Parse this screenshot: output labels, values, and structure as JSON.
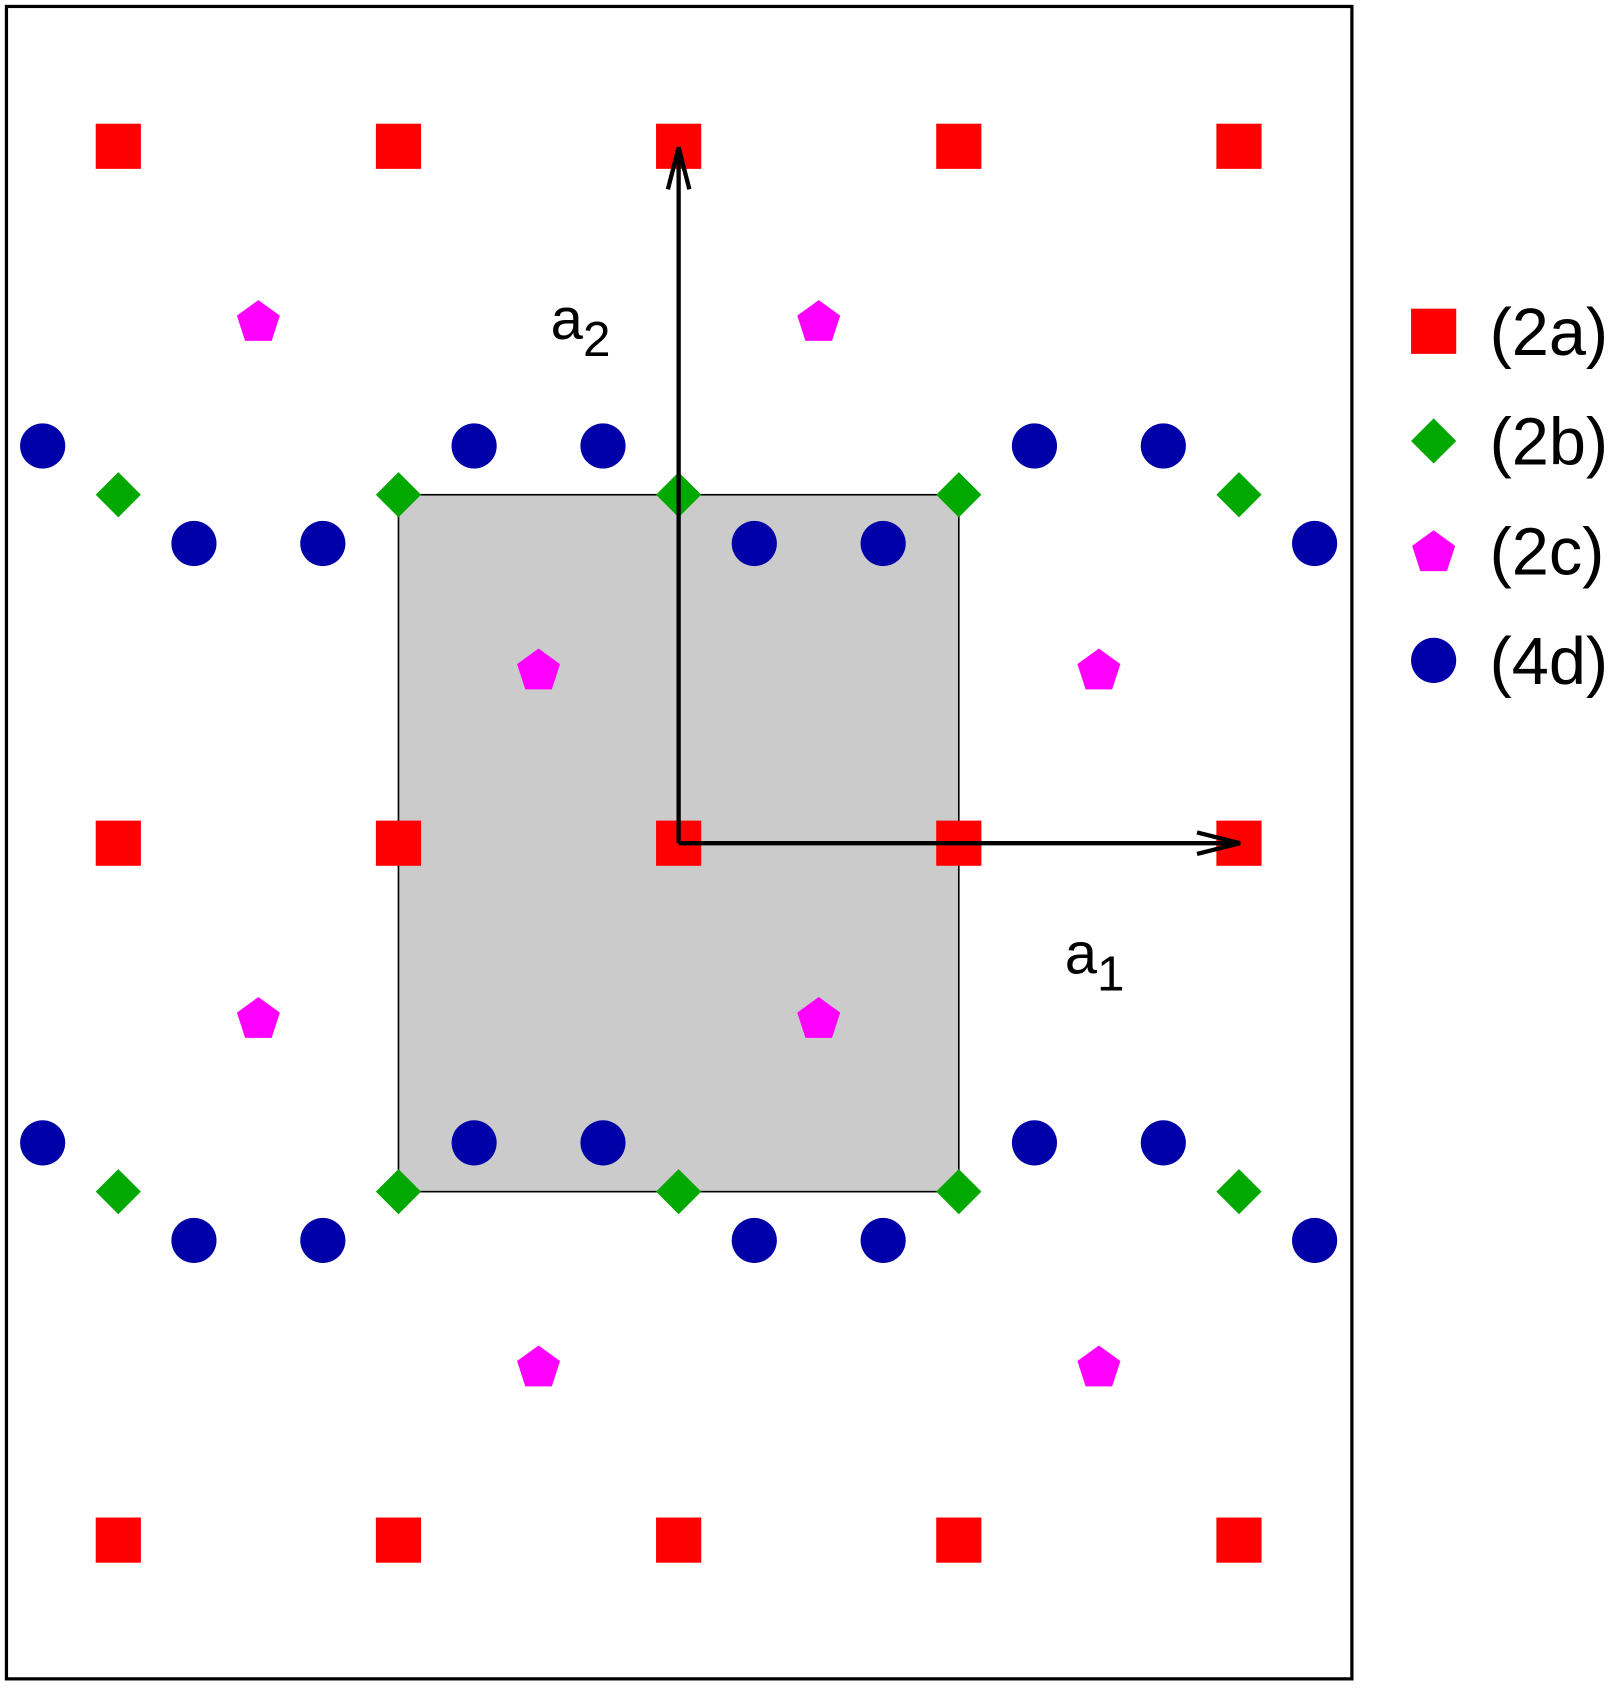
{
  "colors": {
    "2a": "#ff0000",
    "2b": "#00a800",
    "2c": "#ff00ff",
    "4d": "#0000a8",
    "cell": "#cbcbcb"
  },
  "vectors": {
    "a1": {
      "base": "a",
      "sub": "1"
    },
    "a2": {
      "base": "a",
      "sub": "2"
    }
  },
  "legend": [
    {
      "key": "2a",
      "label": "(2a)",
      "shape": "square"
    },
    {
      "key": "2b",
      "label": "(2b)",
      "shape": "diamond"
    },
    {
      "key": "2c",
      "label": "(2c)",
      "shape": "pentagon"
    },
    {
      "key": "4d",
      "label": "(4d)",
      "shape": "circle"
    }
  ],
  "unit_cell": {
    "x": [
      -0.5,
      0.5
    ],
    "y": [
      -0.5,
      0.5
    ]
  },
  "sites": {
    "2a": [
      [
        -1,
        1
      ],
      [
        -0.5,
        1
      ],
      [
        0,
        1
      ],
      [
        0.5,
        1
      ],
      [
        1,
        1
      ],
      [
        -1,
        0
      ],
      [
        -0.5,
        0
      ],
      [
        0,
        0
      ],
      [
        0.5,
        0
      ],
      [
        1,
        0
      ],
      [
        -1,
        -1
      ],
      [
        -0.5,
        -1
      ],
      [
        0,
        -1
      ],
      [
        0.5,
        -1
      ],
      [
        1,
        -1
      ]
    ],
    "2b": [
      [
        -1,
        0.5
      ],
      [
        -0.5,
        0.5
      ],
      [
        0,
        0.5
      ],
      [
        0.5,
        0.5
      ],
      [
        1,
        0.5
      ],
      [
        -1,
        -0.5
      ],
      [
        -0.5,
        -0.5
      ],
      [
        0,
        -0.5
      ],
      [
        0.5,
        -0.5
      ],
      [
        1,
        -0.5
      ]
    ],
    "2c": [
      [
        -0.75,
        0.75
      ],
      [
        0.25,
        0.75
      ],
      [
        -0.25,
        0.25
      ],
      [
        0.75,
        0.25
      ],
      [
        -0.75,
        -0.25
      ],
      [
        0.25,
        -0.25
      ],
      [
        -0.25,
        -0.75
      ],
      [
        0.75,
        -0.75
      ]
    ],
    "4d": [
      [
        -1.135,
        0.57
      ],
      [
        -0.365,
        0.57
      ],
      [
        -0.135,
        0.57
      ],
      [
        0.635,
        0.57
      ],
      [
        0.865,
        0.57
      ],
      [
        -0.865,
        0.43
      ],
      [
        -0.635,
        0.43
      ],
      [
        0.135,
        0.43
      ],
      [
        0.365,
        0.43
      ],
      [
        1.135,
        0.43
      ],
      [
        -1.135,
        -0.43
      ],
      [
        -0.365,
        -0.43
      ],
      [
        -0.135,
        -0.43
      ],
      [
        0.635,
        -0.43
      ],
      [
        0.865,
        -0.43
      ],
      [
        -0.865,
        -0.57
      ],
      [
        -0.635,
        -0.57
      ],
      [
        0.135,
        -0.57
      ],
      [
        0.365,
        -0.57
      ],
      [
        1.135,
        -0.57
      ]
    ]
  }
}
